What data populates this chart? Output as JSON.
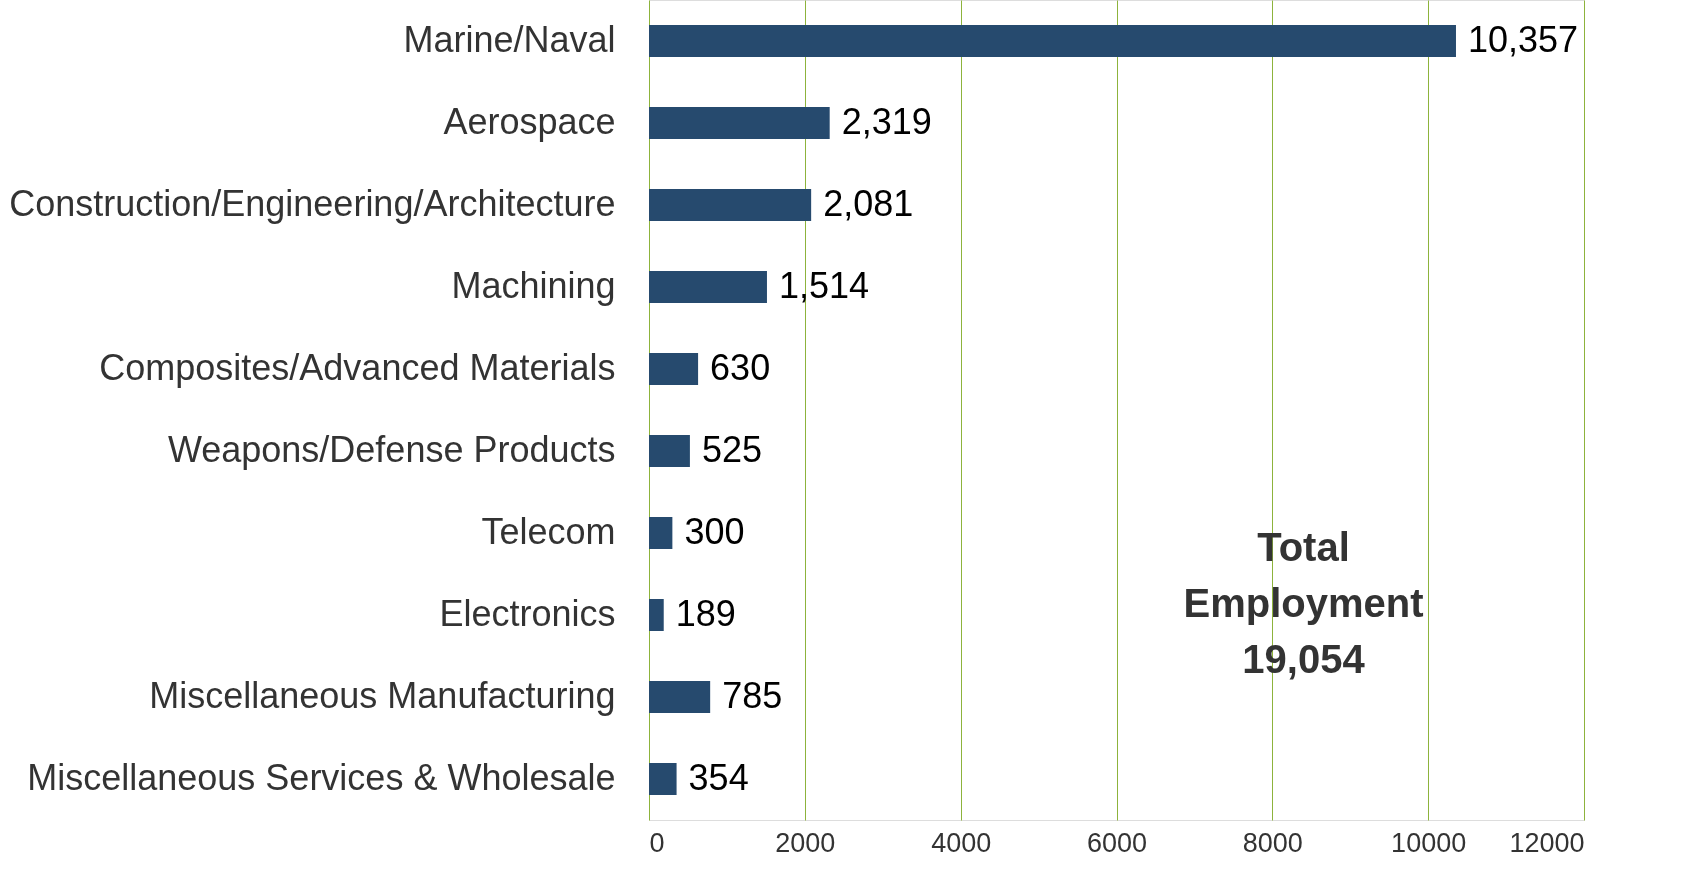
{
  "chart_data": {
    "type": "bar",
    "orientation": "horizontal",
    "categories": [
      "Marine/Naval",
      "Aerospace",
      "Construction/Engineering/Architecture",
      "Machining",
      "Composites/Advanced Materials",
      "Weapons/Defense Products",
      "Telecom",
      "Electronics",
      "Miscellaneous Manufacturing",
      "Miscellaneous Services & Wholesale"
    ],
    "values": [
      10357,
      2319,
      2081,
      1514,
      630,
      525,
      300,
      189,
      785,
      354
    ],
    "color": "#264a6e",
    "xlim": [
      0,
      12000
    ],
    "xticks": [
      0,
      2000,
      4000,
      6000,
      8000,
      10000,
      12000
    ],
    "grid": "x",
    "value_labels": [
      "10,357",
      "2,319",
      "2,081",
      "1,514",
      "630",
      "525",
      "300",
      "189",
      "785",
      "354"
    ],
    "annotations": [
      "Total\nEmployment\n19,054"
    ]
  }
}
